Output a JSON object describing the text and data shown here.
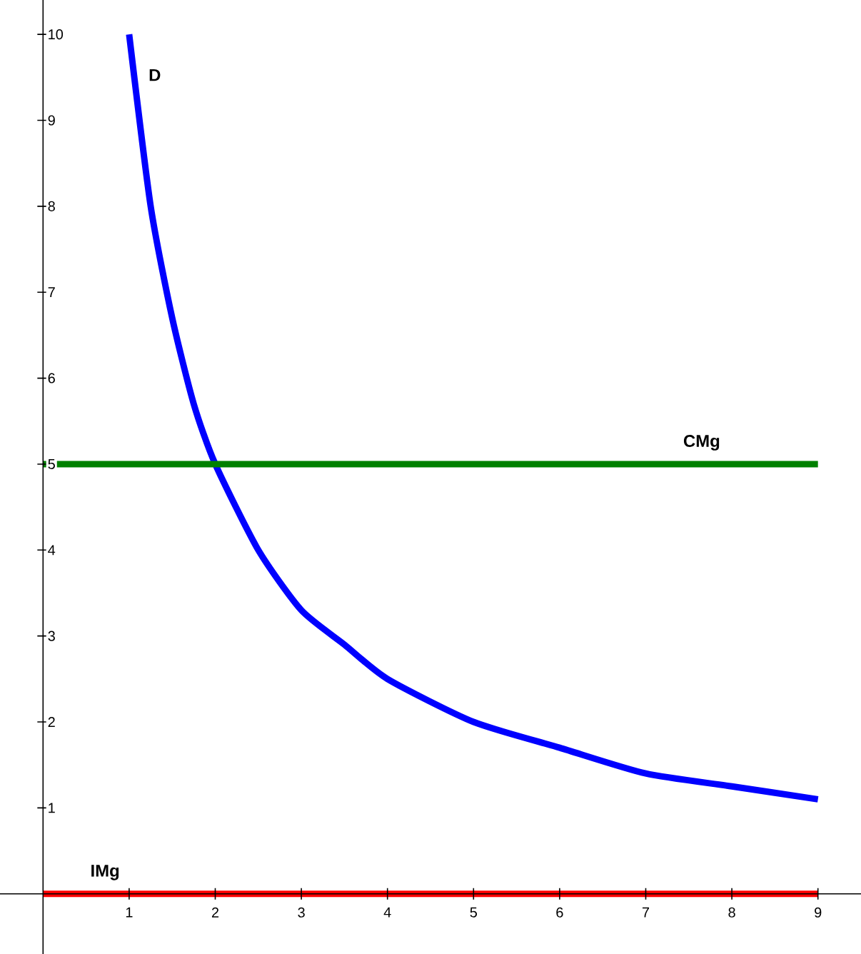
{
  "chart_data": {
    "type": "line",
    "xlim": [
      -0.5,
      9.5
    ],
    "ylim": [
      -0.7,
      10.4
    ],
    "xticks": [
      1,
      2,
      3,
      4,
      5,
      6,
      7,
      8,
      9
    ],
    "yticks": [
      1,
      2,
      3,
      4,
      5,
      6,
      7,
      8,
      9,
      10
    ],
    "grid": false,
    "legend": false,
    "marker": "none",
    "line_style": "solid",
    "series": [
      {
        "name": "D",
        "color": "#0000ff",
        "x": [
          1,
          1.25,
          1.5,
          1.75,
          2,
          2.5,
          3,
          3.5,
          4,
          5,
          6,
          7,
          8,
          9
        ],
        "values": [
          10,
          8,
          6.7,
          5.7,
          5,
          4,
          3.3,
          2.9,
          2.5,
          2,
          1.7,
          1.4,
          1.25,
          1.1
        ]
      },
      {
        "name": "CMg",
        "color": "#008000",
        "x": [
          0,
          9
        ],
        "values": [
          5,
          5
        ]
      },
      {
        "name": "IMg",
        "color": "#ff0000",
        "x": [
          0,
          9
        ],
        "values": [
          0,
          0
        ]
      }
    ]
  }
}
